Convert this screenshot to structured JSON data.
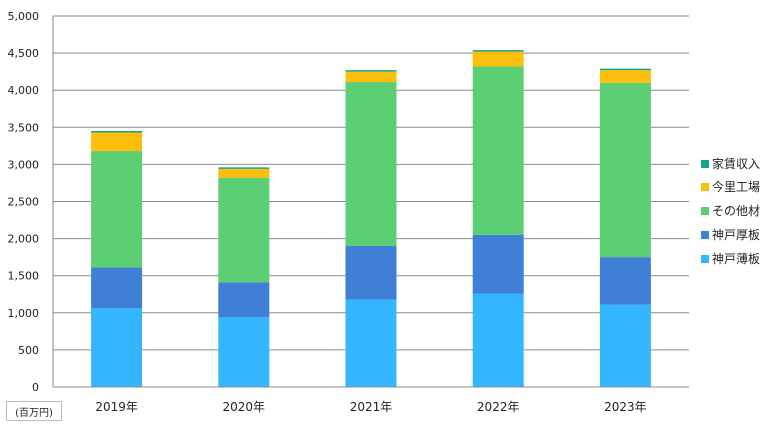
{
  "chart_data": {
    "type": "bar",
    "stacked": true,
    "categories": [
      "2019年",
      "2020年",
      "2021年",
      "2022年",
      "2023年"
    ],
    "series": [
      {
        "name": "神戸薄板",
        "color": "#33b5ff",
        "values": [
          1060,
          940,
          1180,
          1260,
          1110
        ]
      },
      {
        "name": "神戸厚板",
        "color": "#3f7fd6",
        "values": [
          550,
          470,
          720,
          790,
          640
        ]
      },
      {
        "name": "その他材",
        "color": "#5ccf75",
        "values": [
          1570,
          1410,
          2210,
          2270,
          2350
        ]
      },
      {
        "name": "今里工場",
        "color": "#fcbf0c",
        "values": [
          250,
          120,
          140,
          200,
          170
        ]
      },
      {
        "name": "家賃収入",
        "color": "#12a38a",
        "values": [
          20,
          20,
          20,
          20,
          20
        ]
      }
    ],
    "legend_order": [
      "家賃収入",
      "今里工場",
      "その他材",
      "神戸厚板",
      "神戸薄板"
    ],
    "ylim": [
      0,
      5000
    ],
    "yticks": [
      0,
      500,
      1000,
      1500,
      2000,
      2500,
      3000,
      3500,
      4000,
      4500,
      5000
    ],
    "ytick_labels": [
      "0",
      "500",
      "1,000",
      "1,500",
      "2,000",
      "2,500",
      "3,000",
      "3,500",
      "4,000",
      "4,500",
      "5,000"
    ],
    "grid": true,
    "legend_position": "right",
    "unit_label": "(百万円)"
  }
}
